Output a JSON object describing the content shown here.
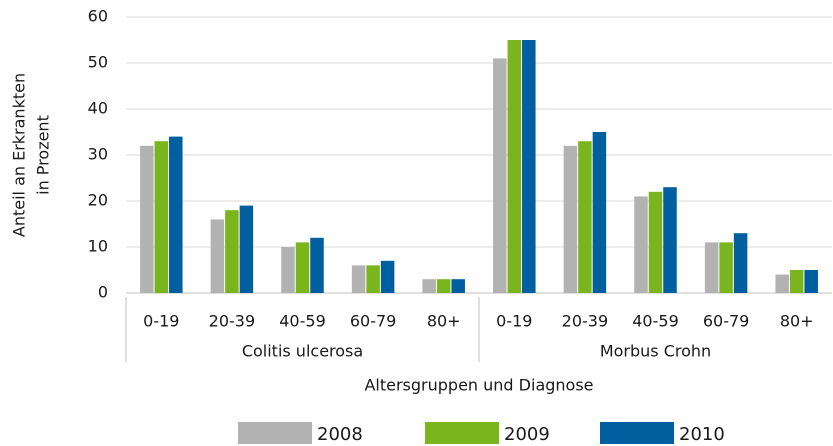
{
  "chart_data": {
    "type": "bar",
    "ylabel": [
      "Anteil an Erkrankten",
      "in Prozent"
    ],
    "xlabel": "Altersgruppen und Diagnose",
    "groups": [
      {
        "name": "Colitis ulcerosa",
        "categories": [
          "0-19",
          "20-39",
          "40-59",
          "60-79",
          "80+"
        ]
      },
      {
        "name": "Morbus Crohn",
        "categories": [
          "0-19",
          "20-39",
          "40-59",
          "60-79",
          "80+"
        ]
      }
    ],
    "series": [
      {
        "name": "2008",
        "color": "#b2b2b2",
        "values": [
          32,
          16,
          10,
          6,
          3,
          51,
          32,
          21,
          11,
          4
        ]
      },
      {
        "name": "2009",
        "color": "#7ab51d",
        "values": [
          33,
          18,
          11,
          6,
          3,
          55,
          33,
          22,
          11,
          5
        ]
      },
      {
        "name": "2010",
        "color": "#005f9e",
        "values": [
          34,
          19,
          12,
          7,
          3,
          55,
          35,
          23,
          13,
          5
        ]
      }
    ],
    "ylim": [
      0,
      60
    ],
    "yticks": [
      0,
      10,
      20,
      30,
      40,
      50,
      60
    ],
    "grid": true,
    "legend": "bottom"
  }
}
